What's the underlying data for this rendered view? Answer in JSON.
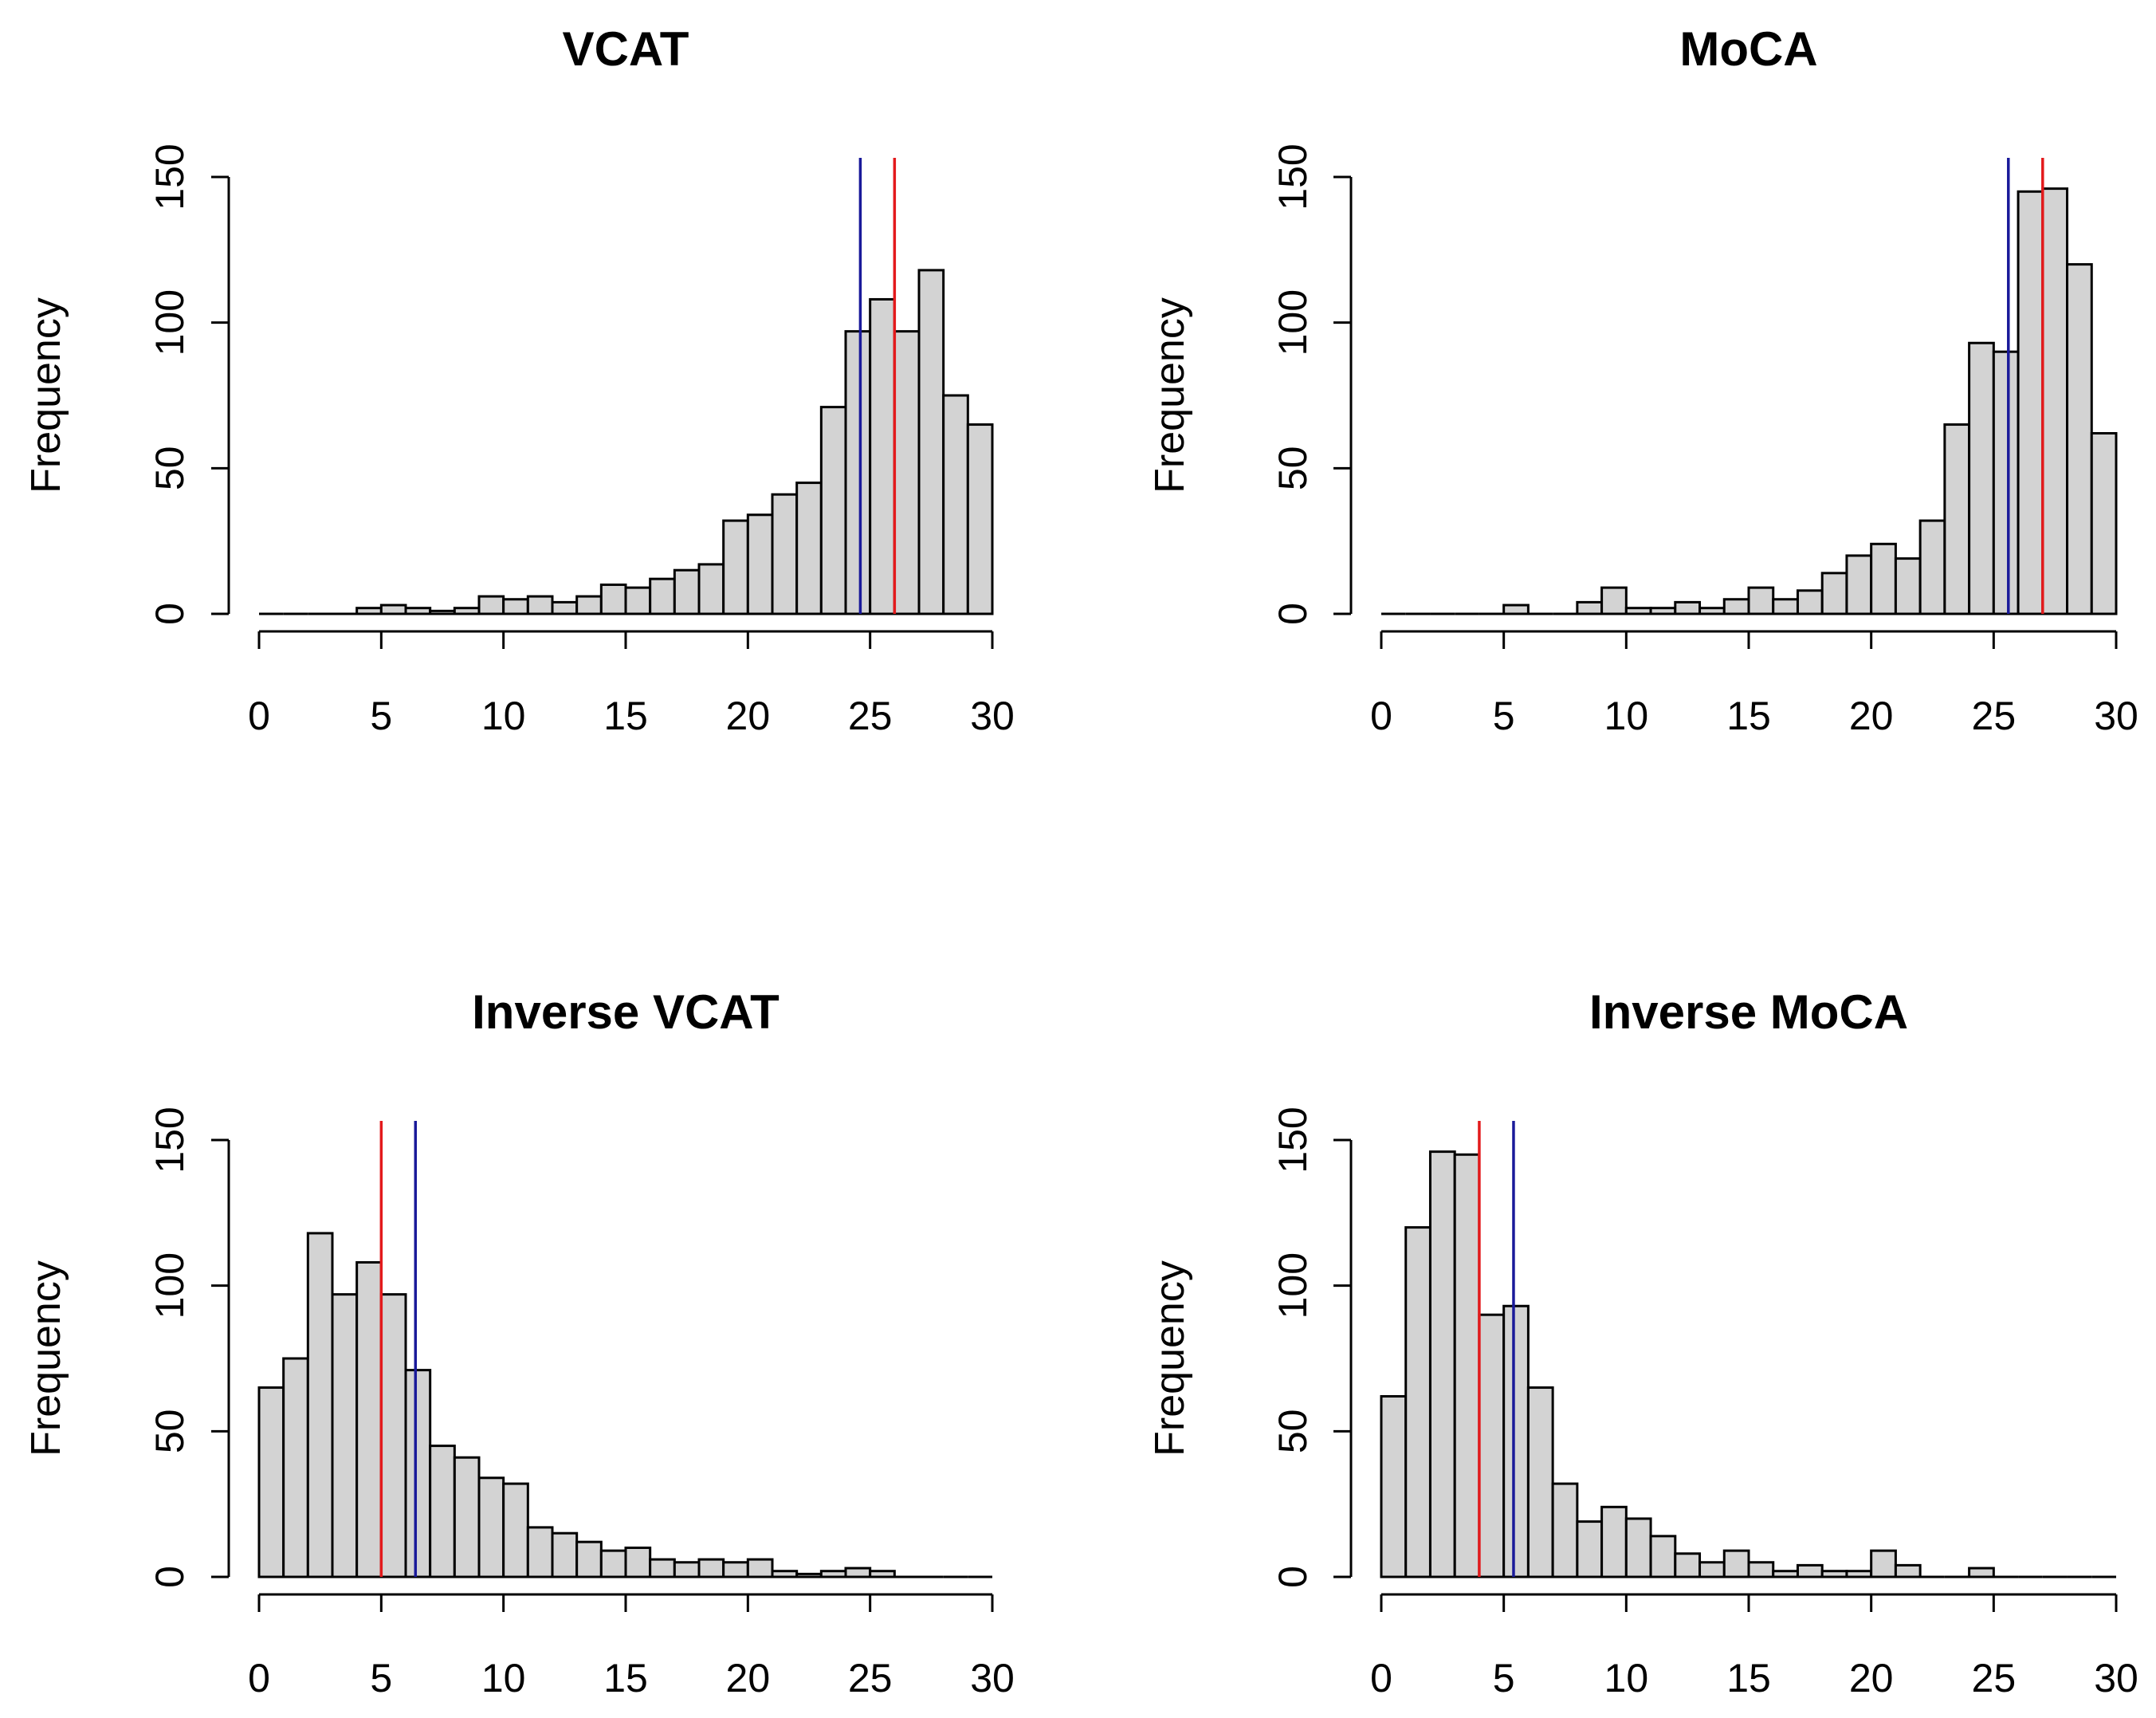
{
  "colors": {
    "bar_fill": "#d3d3d3",
    "bar_stroke": "#000000",
    "median_line": "#e31a1c",
    "mean_line": "#1a1a9a"
  },
  "chart_data": [
    {
      "type": "bar",
      "title": "VCAT",
      "xlabel": "",
      "ylabel": "Frequency",
      "xlim": [
        0,
        30
      ],
      "ylim": [
        0,
        150
      ],
      "x_ticks": [
        "0",
        "5",
        "10",
        "15",
        "20",
        "25",
        "30"
      ],
      "y_ticks": [
        "0",
        "50",
        "100",
        "150"
      ],
      "bin_width": 1,
      "bins_start": 0,
      "values": [
        0,
        0,
        0,
        0,
        2,
        3,
        2,
        1,
        2,
        6,
        5,
        6,
        4,
        6,
        10,
        9,
        12,
        15,
        17,
        32,
        34,
        41,
        45,
        71,
        97,
        108,
        97,
        118,
        75,
        65
      ],
      "vlines": [
        {
          "name": "mean",
          "x": 24.6,
          "color": "#1a1a9a"
        },
        {
          "name": "median",
          "x": 26,
          "color": "#e31a1c"
        }
      ]
    },
    {
      "type": "bar",
      "title": "MoCA",
      "xlabel": "",
      "ylabel": "Frequency",
      "xlim": [
        0,
        30
      ],
      "ylim": [
        0,
        150
      ],
      "x_ticks": [
        "0",
        "5",
        "10",
        "15",
        "20",
        "25",
        "30"
      ],
      "y_ticks": [
        "0",
        "50",
        "100",
        "150"
      ],
      "bin_width": 1,
      "bins_start": 0,
      "values": [
        0,
        0,
        0,
        0,
        0,
        3,
        0,
        0,
        4,
        9,
        2,
        2,
        4,
        2,
        5,
        9,
        5,
        8,
        14,
        20,
        24,
        19,
        32,
        65,
        93,
        90,
        145,
        146,
        120,
        62
      ],
      "vlines": [
        {
          "name": "mean",
          "x": 25.6,
          "color": "#1a1a9a"
        },
        {
          "name": "median",
          "x": 27,
          "color": "#e31a1c"
        }
      ]
    },
    {
      "type": "bar",
      "title": "Inverse VCAT",
      "xlabel": "",
      "ylabel": "Frequency",
      "xlim": [
        0,
        30
      ],
      "ylim": [
        0,
        150
      ],
      "x_ticks": [
        "0",
        "5",
        "10",
        "15",
        "20",
        "25",
        "30"
      ],
      "y_ticks": [
        "0",
        "50",
        "100",
        "150"
      ],
      "bin_width": 1,
      "bins_start": 0,
      "values": [
        65,
        75,
        118,
        97,
        108,
        97,
        71,
        45,
        41,
        34,
        32,
        17,
        15,
        12,
        9,
        10,
        6,
        5,
        6,
        5,
        6,
        2,
        1,
        2,
        3,
        2,
        0,
        0,
        0,
        0
      ],
      "vlines": [
        {
          "name": "median",
          "x": 5,
          "color": "#e31a1c"
        },
        {
          "name": "mean",
          "x": 6.4,
          "color": "#1a1a9a"
        }
      ]
    },
    {
      "type": "bar",
      "title": "Inverse MoCA",
      "xlabel": "",
      "ylabel": "Frequency",
      "xlim": [
        0,
        30
      ],
      "ylim": [
        0,
        150
      ],
      "x_ticks": [
        "0",
        "5",
        "10",
        "15",
        "20",
        "25",
        "30"
      ],
      "y_ticks": [
        "0",
        "50",
        "100",
        "150"
      ],
      "bin_width": 1,
      "bins_start": 0,
      "values": [
        62,
        120,
        146,
        145,
        90,
        93,
        65,
        32,
        19,
        24,
        20,
        14,
        8,
        5,
        9,
        5,
        2,
        4,
        2,
        2,
        9,
        4,
        0,
        0,
        3,
        0,
        0,
        0,
        0,
        0
      ],
      "vlines": [
        {
          "name": "median",
          "x": 4,
          "color": "#e31a1c"
        },
        {
          "name": "mean",
          "x": 5.4,
          "color": "#1a1a9a"
        }
      ]
    }
  ]
}
